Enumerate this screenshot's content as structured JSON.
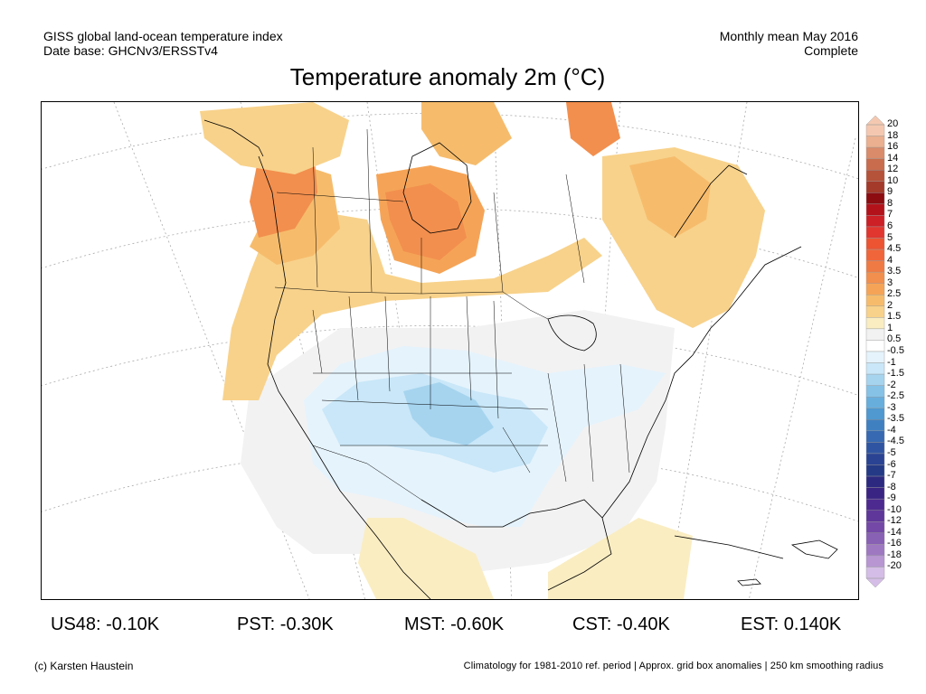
{
  "header": {
    "left_line1": "GISS global land-ocean temperature index",
    "left_line2": "Date base: GHCNv3/ERSSTv4",
    "right_line1": "Monthly mean May 2016",
    "right_line2": "Complete"
  },
  "title": "Temperature anomaly 2m (°C)",
  "colorbar": {
    "labels": [
      "20",
      "18",
      "16",
      "14",
      "12",
      "10",
      "9",
      "8",
      "7",
      "6",
      "5",
      "4.5",
      "4",
      "3.5",
      "3",
      "2.5",
      "2",
      "1.5",
      "1",
      "0.5",
      "-0.5",
      "-1",
      "-1.5",
      "-2",
      "-2.5",
      "-3",
      "-3.5",
      "-4",
      "-4.5",
      "-5",
      "-6",
      "-7",
      "-8",
      "-9",
      "-10",
      "-12",
      "-14",
      "-16",
      "-18",
      "-20"
    ],
    "colors": [
      "#f4c8b0",
      "#eab08f",
      "#d98b6a",
      "#c86c4d",
      "#b5523a",
      "#a33a2a",
      "#8c0c10",
      "#b3121b",
      "#cc1f26",
      "#e0362f",
      "#ec5432",
      "#f0653a",
      "#f07a44",
      "#f28f4e",
      "#f5a457",
      "#f6bc6c",
      "#f8d28b",
      "#faedc2",
      "#f2f2f2",
      "#ffffff",
      "#e5f3fc",
      "#c9e7f8",
      "#a6d4ef",
      "#86c2e6",
      "#67aedd",
      "#4f98d0",
      "#3f80c1",
      "#3669b1",
      "#2f55a2",
      "#2a4393",
      "#253a86",
      "#2c2980",
      "#3a2483",
      "#4d2a8f",
      "#5f379a",
      "#7348a6",
      "#8860b4",
      "#9f78c2",
      "#b896d2",
      "#d4bde6"
    ]
  },
  "stats": [
    {
      "label": "US48: -0.10K"
    },
    {
      "label": "PST: -0.30K"
    },
    {
      "label": "MST: -0.60K"
    },
    {
      "label": "CST: -0.40K"
    },
    {
      "label": "EST: 0.140K"
    }
  ],
  "footer": {
    "left": "(c) Karsten Haustein",
    "right": "Climatology for 1981-2010 ref. period | Approx. grid box anomalies | 250 km smoothing radius"
  }
}
